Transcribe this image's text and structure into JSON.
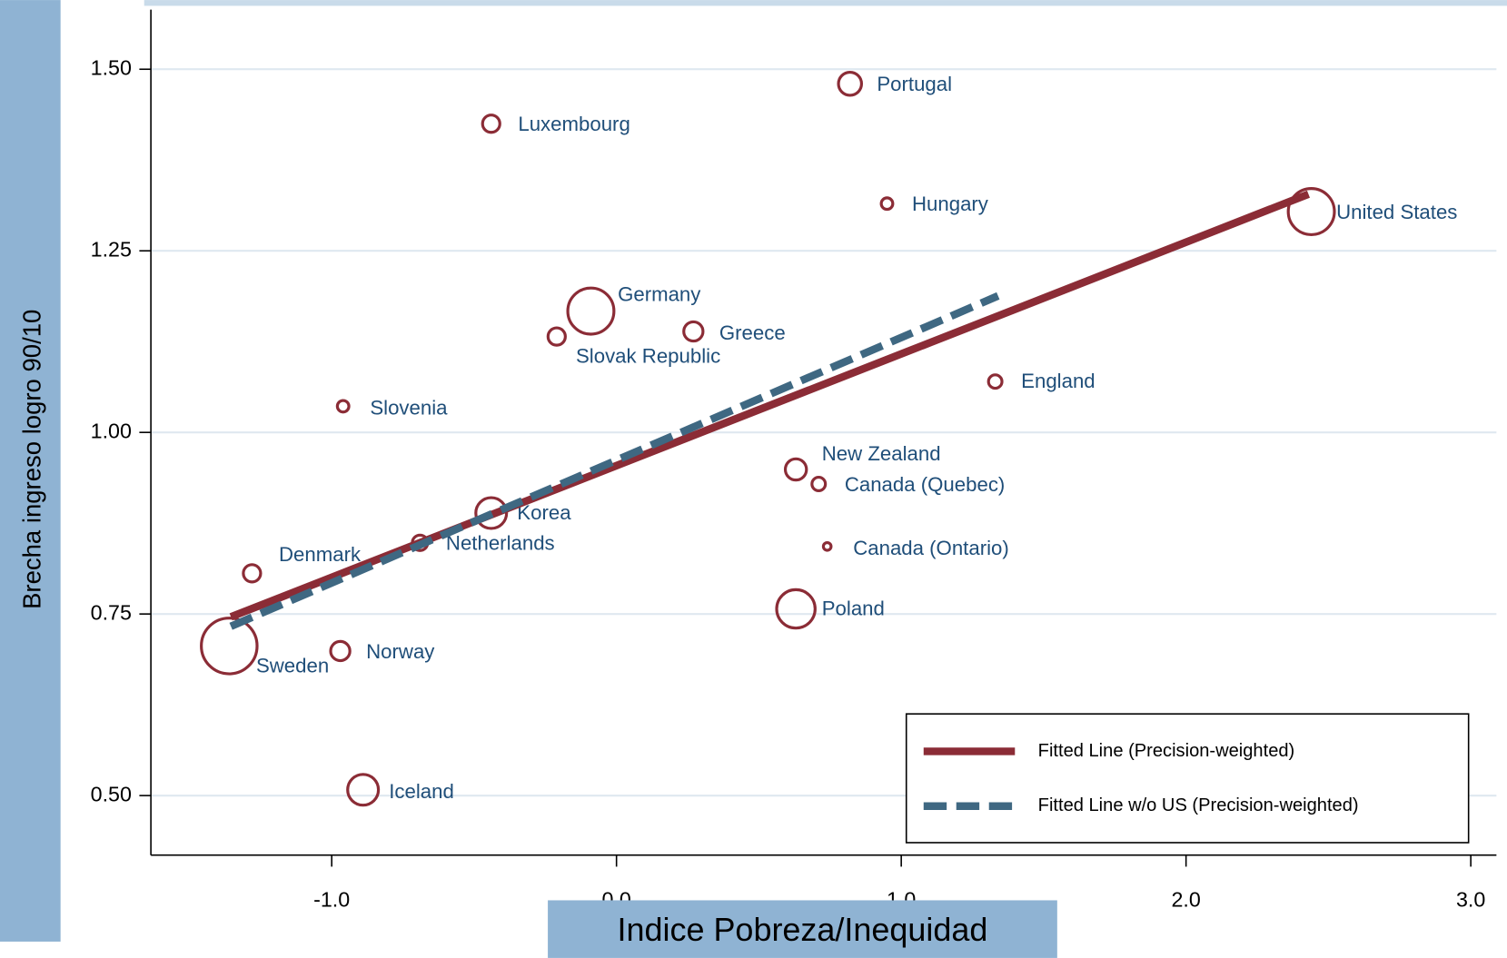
{
  "chart_data": {
    "type": "scatter",
    "x_label": "Indice Pobreza/Inequidad",
    "y_label": "Brecha ingreso logro 90/10",
    "labels": [
      "Portugal",
      "Luxembourg",
      "Hungary",
      "United States",
      "Germany",
      "Slovak Republic",
      "Greece",
      "England",
      "Slovenia",
      "New Zealand",
      "Canada (Quebec)",
      "Korea",
      "Netherlands",
      "Canada (Ontario)",
      "Denmark",
      "Poland",
      "Sweden",
      "Norway",
      "Iceland"
    ],
    "x": [
      0.82,
      -0.44,
      0.95,
      2.44,
      -0.09,
      -0.21,
      0.27,
      1.33,
      -0.96,
      0.63,
      0.71,
      -0.44,
      -0.69,
      0.74,
      -1.28,
      0.63,
      -1.36,
      -0.97,
      -0.89
    ],
    "y": [
      1.48,
      1.425,
      1.315,
      1.304,
      1.167,
      1.132,
      1.139,
      1.07,
      1.036,
      0.949,
      0.929,
      0.889,
      0.848,
      0.843,
      0.806,
      0.757,
      0.706,
      0.699,
      0.508
    ],
    "sizes": [
      12,
      9,
      6,
      24,
      24,
      9,
      10,
      7,
      6,
      11,
      7,
      16,
      8,
      4,
      9,
      20,
      29,
      10,
      16
    ],
    "color": "#8b2c36",
    "label_color": "#1f4e79",
    "fit_lines": [
      {
        "name": "Fitted Line (Precision-weighted)",
        "color": "#8b2c36",
        "style": "solid",
        "x": [
          -1.354,
          2.43
        ],
        "y": [
          0.746,
          1.328
        ]
      },
      {
        "name": "Fitted Line w/o US (Precision-weighted)",
        "color": "#3f6882",
        "style": "dashed",
        "x": [
          -1.354,
          1.34
        ],
        "y": [
          0.733,
          1.188
        ]
      }
    ],
    "xlim": [
      -1.635,
      3.09
    ],
    "ylim": [
      0.418,
      1.582
    ],
    "xticks": [
      {
        "value": -1,
        "label": "-1.0"
      },
      {
        "value": 0,
        "label": "0.0"
      },
      {
        "value": 1,
        "label": "1.0"
      },
      {
        "value": 2,
        "label": "2.0"
      },
      {
        "value": 3,
        "label": "3.0"
      }
    ],
    "yticks": [
      {
        "value": 0.5,
        "label": "0.50"
      },
      {
        "value": 0.75,
        "label": "0.75"
      },
      {
        "value": 1,
        "label": "1.00"
      },
      {
        "value": 1.25,
        "label": "1.25"
      },
      {
        "value": 1.5,
        "label": "1.50"
      }
    ],
    "grid": true,
    "legend_position": "bottom-right"
  }
}
